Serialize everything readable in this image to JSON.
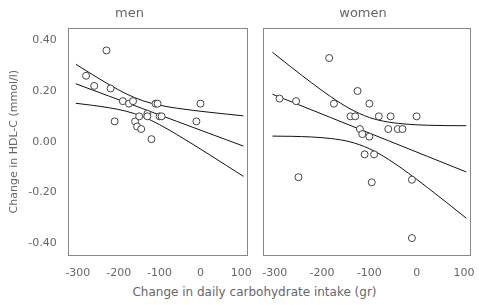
{
  "chart_data": [
    {
      "type": "scatter",
      "title": "men",
      "ylabel": "Change in HDL-C (mmol/l)",
      "xlabel": "Change in daily carbohydrate intake (gr)",
      "xlim": [
        -325,
        115
      ],
      "ylim": [
        -0.45,
        0.45
      ],
      "xticks": [
        -300,
        -200,
        -100,
        0,
        100
      ],
      "yticks": [
        {
          "value": -0.4,
          "label": "-0.40"
        },
        {
          "value": -0.2,
          "label": "-0.20"
        },
        {
          "value": 0.0,
          "label": "0.00"
        },
        {
          "value": 0.2,
          "label": "0.20"
        },
        {
          "value": 0.4,
          "label": "0.40"
        }
      ],
      "grid": false,
      "series": [
        {
          "type": "scatter",
          "color": "#444444",
          "marker": "circle",
          "x": [
            -280,
            -260,
            -230,
            -220,
            -210,
            -190,
            -175,
            -165,
            -160,
            -155,
            -150,
            -145,
            -130,
            -130,
            -120,
            -110,
            -105,
            -100,
            -95,
            -10,
            0
          ],
          "values": [
            0.26,
            0.22,
            0.36,
            0.21,
            0.08,
            0.16,
            0.15,
            0.16,
            0.08,
            0.06,
            0.1,
            0.05,
            0.11,
            0.1,
            0.01,
            0.15,
            0.15,
            0.1,
            0.1,
            0.08,
            0.15
          ]
        },
        {
          "type": "line",
          "color": "#111111",
          "line_style": "solid",
          "x": [
            -305,
            -264,
            -223,
            -182,
            -141,
            -100,
            -59,
            -18,
            23,
            64,
            105
          ],
          "values": [
            0.2284,
            0.2038,
            0.1793,
            0.1547,
            0.1301,
            0.1056,
            0.081,
            0.0564,
            0.0318,
            0.0073,
            -0.0173
          ]
        },
        {
          "type": "line",
          "color": "#111111",
          "line_style": "solid",
          "x": [
            -305,
            -264,
            -223,
            -182,
            -141,
            -100,
            -59,
            -18,
            23,
            64,
            105
          ],
          "values": [
            0.3054,
            0.2643,
            0.2248,
            0.1891,
            0.1615,
            0.1439,
            0.1324,
            0.1236,
            0.1159,
            0.1088,
            0.102
          ]
        },
        {
          "type": "line",
          "color": "#111111",
          "line_style": "solid",
          "x": [
            -305,
            -264,
            -223,
            -182,
            -141,
            -100,
            -59,
            -18,
            23,
            64,
            105
          ],
          "values": [
            0.1515,
            0.1434,
            0.1337,
            0.1203,
            0.0987,
            0.0672,
            0.0295,
            -0.0108,
            -0.0522,
            -0.0943,
            -0.1366
          ]
        }
      ]
    },
    {
      "type": "scatter",
      "title": "women",
      "xlim": [
        -325,
        115
      ],
      "ylim": [
        -0.45,
        0.45
      ],
      "xticks": [
        -300,
        -200,
        -100,
        0,
        100
      ],
      "yticks": [
        -0.4,
        -0.2,
        0.0,
        0.2,
        0.4
      ],
      "tick_labels": "x",
      "grid": false,
      "series": [
        {
          "type": "scatter",
          "color": "#444444",
          "marker": "circle",
          "x": [
            -290,
            -255,
            -250,
            -185,
            -175,
            -140,
            -130,
            -125,
            -120,
            -115,
            -110,
            -100,
            -100,
            -95,
            -90,
            -80,
            -60,
            -55,
            -40,
            -30,
            -10,
            -10,
            0
          ],
          "values": [
            0.17,
            0.16,
            -0.14,
            0.33,
            0.15,
            0.1,
            0.1,
            0.2,
            0.05,
            0.03,
            -0.05,
            0.15,
            0.02,
            -0.16,
            -0.05,
            0.1,
            0.05,
            0.1,
            0.05,
            0.05,
            -0.38,
            -0.15,
            0.1
          ]
        },
        {
          "type": "line",
          "color": "#111111",
          "line_style": "solid",
          "x": [
            -305,
            -264,
            -223,
            -182,
            -141,
            -100,
            -59,
            -18,
            23,
            64,
            105
          ],
          "values": [
            0.1873,
            0.1566,
            0.126,
            0.0953,
            0.0647,
            0.034,
            0.0033,
            -0.0273,
            -0.058,
            -0.0887,
            -0.1193
          ]
        },
        {
          "type": "line",
          "color": "#111111",
          "line_style": "solid",
          "x": [
            -305,
            -264,
            -223,
            -182,
            -141,
            -100,
            -59,
            -18,
            23,
            64,
            105
          ],
          "values": [
            0.3525,
            0.2921,
            0.2334,
            0.178,
            0.1299,
            0.0955,
            0.0771,
            0.0687,
            0.0649,
            0.0634,
            0.063
          ]
        },
        {
          "type": "line",
          "color": "#111111",
          "line_style": "solid",
          "x": [
            -305,
            -264,
            -223,
            -182,
            -141,
            -100,
            -59,
            -18,
            23,
            64,
            105
          ],
          "values": [
            0.0221,
            0.0212,
            0.0186,
            0.0127,
            -0.0005,
            -0.0275,
            -0.0704,
            -0.1233,
            -0.1809,
            -0.2407,
            -0.3017
          ]
        }
      ]
    }
  ]
}
